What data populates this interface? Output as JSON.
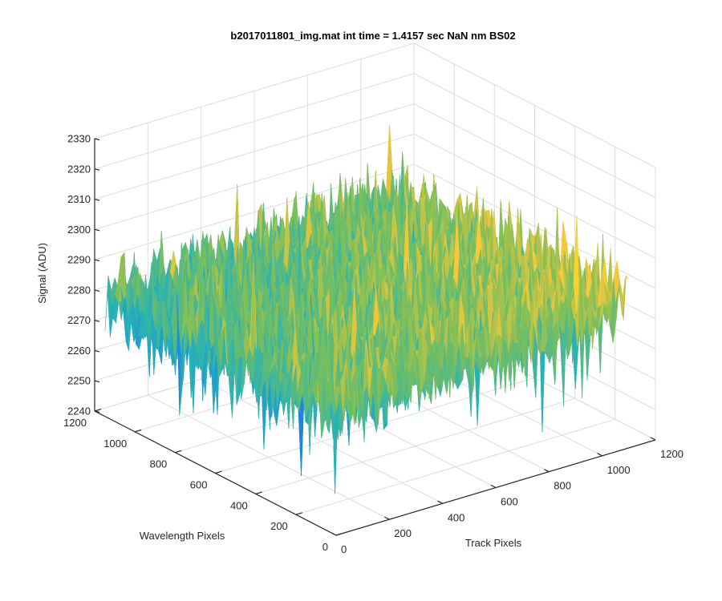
{
  "chart_data": {
    "type": "surface",
    "title": "b2017011801_img.mat int time = 1.4157 sec  NaN nm BS02",
    "xlabel": "Track Pixels",
    "ylabel": "Wavelength Pixels",
    "zlabel": "Signal (ADU)",
    "xlim": [
      0,
      1200
    ],
    "ylim": [
      0,
      1200
    ],
    "zlim": [
      2240,
      2330
    ],
    "x_ticks": [
      "0",
      "200",
      "400",
      "600",
      "800",
      "1000",
      "1200"
    ],
    "y_ticks": [
      "0",
      "200",
      "400",
      "600",
      "800",
      "1000",
      "1200"
    ],
    "z_ticks": [
      "2240",
      "2250",
      "2260",
      "2270",
      "2280",
      "2290",
      "2300",
      "2310",
      "2320",
      "2330"
    ],
    "grid": true,
    "surface_extent": {
      "x": [
        1,
        1100
      ],
      "y": [
        1,
        1150
      ]
    },
    "signal_mean": 2281,
    "signal_range": [
      2243,
      2325
    ],
    "colormap": [
      "#3d26a8",
      "#1a8ce0",
      "#2ab3b3",
      "#7bbf5a",
      "#f5c83a",
      "#f9e51d"
    ]
  }
}
